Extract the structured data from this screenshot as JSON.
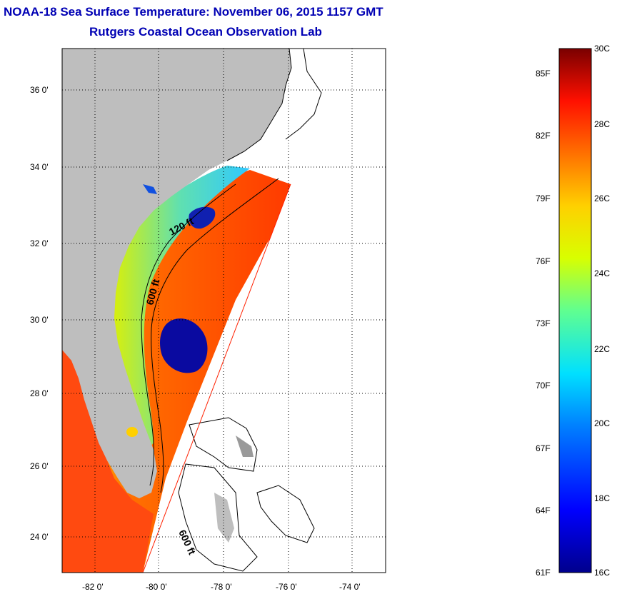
{
  "title": "NOAA-18 Sea Surface Temperature:  November 06, 2015 1157 GMT",
  "subtitle": "Rutgers Coastal Ocean Observation Lab",
  "map": {
    "lat_labels": [
      "36 0'",
      "34 0'",
      "32 0'",
      "30 0'",
      "28 0'",
      "26 0'",
      "24 0'"
    ],
    "lon_labels": [
      "-82 0'",
      "-80 0'",
      "-78 0'",
      "-76 0'",
      "-74 0'"
    ],
    "contour_labels": [
      "120 ft",
      "600 ft",
      "600 ft"
    ],
    "colors": {
      "land": "#bebebe",
      "no_data": "#ffffff",
      "contour": "#000000"
    }
  },
  "colorbar": {
    "fahrenheit_labels": [
      "85F",
      "82F",
      "79F",
      "76F",
      "73F",
      "70F",
      "67F",
      "64F",
      "61F"
    ],
    "celsius_labels": [
      "30C",
      "28C",
      "26C",
      "24C",
      "22C",
      "20C",
      "18C",
      "16C"
    ],
    "range_c": [
      16,
      30
    ]
  }
}
